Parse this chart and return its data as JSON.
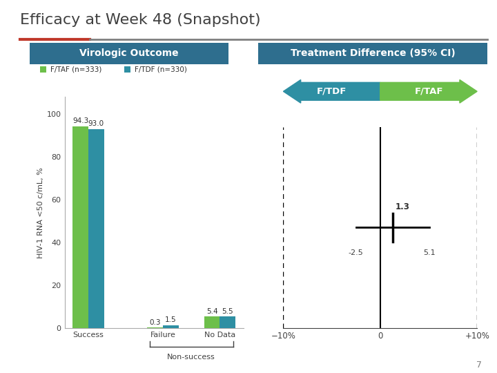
{
  "title": "Efficacy at Week 48 (Snapshot)",
  "title_fontsize": 16,
  "title_color": "#404040",
  "header_left": "Virologic Outcome",
  "header_right": "Treatment Difference (95% CI)",
  "header_bg": "#2e6e8e",
  "header_fontsize": 10,
  "accent_line_color_left": "#c0392b",
  "accent_line_color_right": "#7f7f7f",
  "categories": [
    "Success",
    "Failure",
    "No Data"
  ],
  "ftaf_values": [
    94.3,
    0.3,
    5.4
  ],
  "ftdf_values": [
    93.0,
    1.5,
    5.5
  ],
  "ftaf_color": "#6dbf4a",
  "ftdf_color": "#2e8fa3",
  "ylabel": "HIV-1 RNA <50 c/mL, %",
  "ylabel_fontsize": 8,
  "ylim": [
    0,
    108
  ],
  "yticks": [
    0,
    20,
    40,
    60,
    80,
    100
  ],
  "legend_ftaf": "F/TAF (n=333)",
  "legend_ftdf": "F/TDF (n=330)",
  "nonsuccess_label": "Non-success",
  "treatment_diff": 1.3,
  "ci_lower": -2.5,
  "ci_upper": 5.1,
  "forest_xlim": [
    -10,
    10
  ],
  "forest_xticks": [
    -10,
    0,
    10
  ],
  "forest_xtick_labels": [
    "−10%",
    "0",
    "+10%"
  ],
  "arrow_ftdf_color": "#2e8fa3",
  "arrow_ftaf_color": "#6dbf4a",
  "page_number": "7",
  "bg_color": "#ffffff"
}
